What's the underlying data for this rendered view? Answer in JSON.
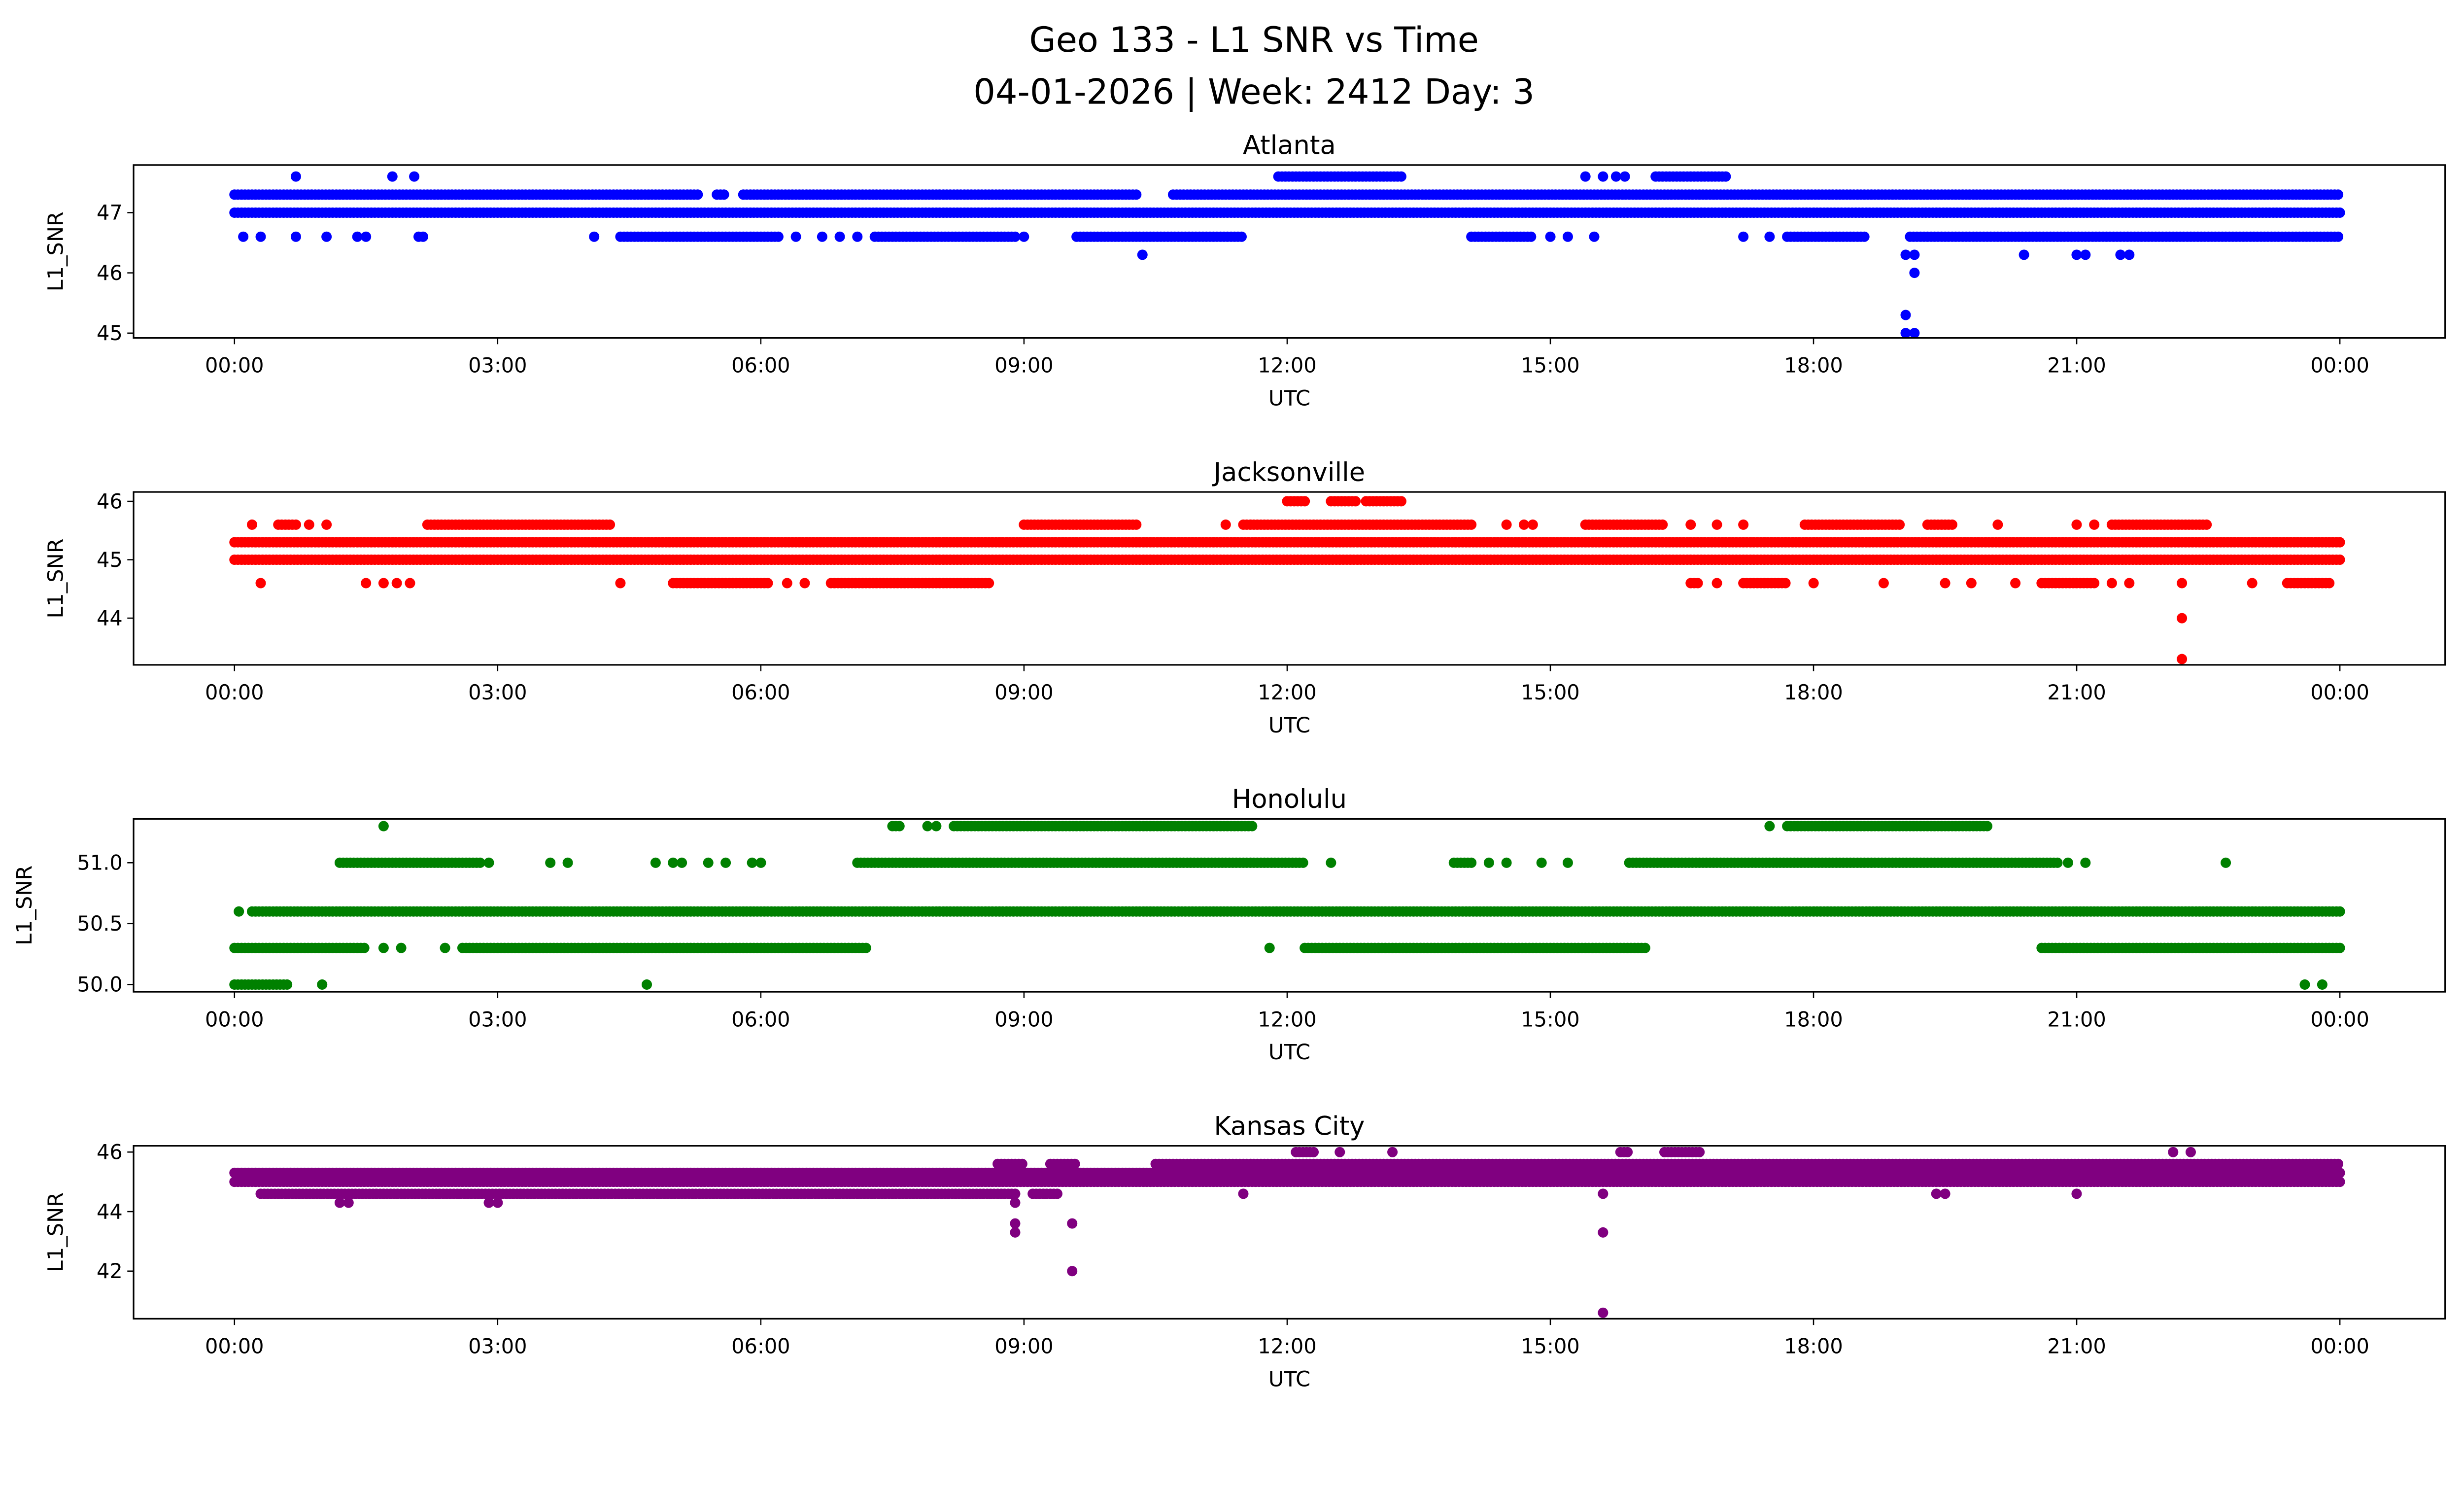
{
  "chart_data": {
    "type": "scatter",
    "title_line1": "Geo 133 - L1 SNR vs Time",
    "title_line2": "04-01-2026 | Week: 2412 Day: 3",
    "xlabel": "UTC",
    "ylabel": "L1_SNR",
    "xlim_hours": [
      -1.15,
      25.2
    ],
    "xtick_values_hours": [
      0,
      3,
      6,
      9,
      12,
      15,
      18,
      21,
      24
    ],
    "xtick_labels": [
      "00:00",
      "03:00",
      "06:00",
      "09:00",
      "12:00",
      "15:00",
      "18:00",
      "21:00",
      "00:00"
    ],
    "panels": [
      {
        "title": "Atlanta",
        "color": "#0000ff",
        "ylim": [
          44.92,
          47.79
        ],
        "yticks": [
          45,
          46,
          47
        ],
        "ytick_labels": [
          "45",
          "46",
          "47"
        ],
        "runs": [
          [
            47.0,
            0,
            24
          ],
          [
            47.3,
            0,
            5.3
          ],
          [
            47.3,
            5.5,
            5.6
          ],
          [
            47.3,
            5.8,
            10.3
          ],
          [
            47.3,
            10.7,
            24
          ],
          [
            47.6,
            11.9,
            13.3
          ],
          [
            47.6,
            16.2,
            17.0
          ],
          [
            46.6,
            4.4,
            6.2
          ],
          [
            46.6,
            7.3,
            8.9
          ],
          [
            46.6,
            9.6,
            11.5
          ],
          [
            46.6,
            14.1,
            14.8
          ],
          [
            46.6,
            17.7,
            18.6
          ],
          [
            46.6,
            19.1,
            24
          ]
        ],
        "points": [
          [
            0.7,
            47.6
          ],
          [
            1.8,
            47.6
          ],
          [
            2.05,
            47.6
          ],
          [
            15.4,
            47.6
          ],
          [
            15.6,
            47.6
          ],
          [
            15.75,
            47.6
          ],
          [
            15.85,
            47.6
          ],
          [
            0.1,
            46.6
          ],
          [
            0.3,
            46.6
          ],
          [
            0.7,
            46.6
          ],
          [
            1.05,
            46.6
          ],
          [
            1.4,
            46.6
          ],
          [
            1.5,
            46.6
          ],
          [
            2.1,
            46.6
          ],
          [
            2.15,
            46.6
          ],
          [
            4.1,
            46.6
          ],
          [
            6.4,
            46.6
          ],
          [
            6.7,
            46.6
          ],
          [
            6.9,
            46.6
          ],
          [
            7.1,
            46.6
          ],
          [
            9.0,
            46.6
          ],
          [
            15.0,
            46.6
          ],
          [
            15.2,
            46.6
          ],
          [
            15.5,
            46.6
          ],
          [
            17.2,
            46.6
          ],
          [
            17.5,
            46.6
          ],
          [
            10.35,
            46.3
          ],
          [
            19.05,
            46.3
          ],
          [
            19.15,
            46.3
          ],
          [
            20.4,
            46.3
          ],
          [
            21.0,
            46.3
          ],
          [
            21.1,
            46.3
          ],
          [
            21.5,
            46.3
          ],
          [
            21.6,
            46.3
          ],
          [
            19.15,
            46.0
          ],
          [
            19.05,
            45.3
          ],
          [
            19.05,
            45.0
          ],
          [
            19.15,
            45.0
          ]
        ]
      },
      {
        "title": "Jacksonville",
        "color": "#ff0000",
        "ylim": [
          43.2,
          46.16
        ],
        "yticks": [
          44,
          45,
          46
        ],
        "ytick_labels": [
          "44",
          "45",
          "46"
        ],
        "runs": [
          [
            45.0,
            0,
            24
          ],
          [
            45.3,
            0,
            24
          ],
          [
            45.6,
            0.5,
            0.7
          ],
          [
            45.6,
            2.2,
            4.3
          ],
          [
            45.6,
            9.0,
            10.3
          ],
          [
            45.6,
            11.5,
            14.1
          ],
          [
            45.6,
            15.4,
            16.3
          ],
          [
            45.6,
            17.9,
            19.0
          ],
          [
            45.6,
            19.3,
            19.6
          ],
          [
            45.6,
            21.4,
            22.5
          ],
          [
            46.0,
            12.0,
            12.2
          ],
          [
            46.0,
            12.5,
            12.8
          ],
          [
            46.0,
            12.9,
            13.3
          ],
          [
            44.6,
            5.0,
            6.1
          ],
          [
            44.6,
            6.8,
            8.6
          ],
          [
            44.6,
            16.6,
            16.7
          ],
          [
            44.6,
            17.2,
            17.7
          ],
          [
            44.6,
            20.6,
            21.2
          ],
          [
            44.6,
            23.4,
            23.9
          ]
        ],
        "points": [
          [
            0.2,
            45.6
          ],
          [
            0.85,
            45.6
          ],
          [
            1.05,
            45.6
          ],
          [
            11.3,
            45.6
          ],
          [
            14.5,
            45.6
          ],
          [
            14.7,
            45.6
          ],
          [
            14.8,
            45.6
          ],
          [
            16.6,
            45.6
          ],
          [
            16.9,
            45.6
          ],
          [
            17.2,
            45.6
          ],
          [
            20.1,
            45.6
          ],
          [
            21.0,
            45.6
          ],
          [
            21.2,
            45.6
          ],
          [
            0.3,
            44.6
          ],
          [
            1.5,
            44.6
          ],
          [
            1.7,
            44.6
          ],
          [
            1.85,
            44.6
          ],
          [
            2.0,
            44.6
          ],
          [
            4.4,
            44.6
          ],
          [
            6.3,
            44.6
          ],
          [
            6.5,
            44.6
          ],
          [
            16.9,
            44.6
          ],
          [
            18.0,
            44.6
          ],
          [
            18.8,
            44.6
          ],
          [
            19.5,
            44.6
          ],
          [
            19.8,
            44.6
          ],
          [
            20.3,
            44.6
          ],
          [
            21.4,
            44.6
          ],
          [
            21.6,
            44.6
          ],
          [
            22.2,
            44.6
          ],
          [
            23.0,
            44.6
          ],
          [
            22.2,
            44.0
          ],
          [
            22.2,
            43.3
          ]
        ]
      },
      {
        "title": "Honolulu",
        "color": "#008000",
        "ylim": [
          49.94,
          51.36
        ],
        "yticks": [
          50.0,
          50.5,
          51.0
        ],
        "ytick_labels": [
          "50.0",
          "50.5",
          "51.0"
        ],
        "runs": [
          [
            50.0,
            0,
            0.6
          ],
          [
            50.3,
            0,
            1.5
          ],
          [
            50.3,
            2.6,
            7.2
          ],
          [
            50.3,
            12.2,
            16.1
          ],
          [
            50.3,
            20.6,
            24
          ],
          [
            50.6,
            0.2,
            24
          ],
          [
            51.0,
            1.2,
            2.8
          ],
          [
            51.0,
            7.1,
            12.2
          ],
          [
            51.0,
            13.9,
            14.1
          ],
          [
            51.0,
            15.9,
            20.8
          ],
          [
            51.3,
            7.5,
            7.6
          ],
          [
            51.3,
            8.2,
            11.6
          ],
          [
            51.3,
            17.7,
            20.0
          ]
        ],
        "points": [
          [
            1.0,
            50.0
          ],
          [
            4.7,
            50.0
          ],
          [
            23.6,
            50.0
          ],
          [
            23.8,
            50.0
          ],
          [
            1.7,
            50.3
          ],
          [
            1.9,
            50.3
          ],
          [
            2.4,
            50.3
          ],
          [
            11.8,
            50.3
          ],
          [
            0.05,
            50.6
          ],
          [
            2.9,
            51.0
          ],
          [
            3.6,
            51.0
          ],
          [
            3.8,
            51.0
          ],
          [
            4.8,
            51.0
          ],
          [
            5.0,
            51.0
          ],
          [
            5.1,
            51.0
          ],
          [
            5.4,
            51.0
          ],
          [
            5.6,
            51.0
          ],
          [
            5.9,
            51.0
          ],
          [
            6.0,
            51.0
          ],
          [
            12.5,
            51.0
          ],
          [
            14.3,
            51.0
          ],
          [
            14.5,
            51.0
          ],
          [
            14.9,
            51.0
          ],
          [
            15.2,
            51.0
          ],
          [
            20.9,
            51.0
          ],
          [
            21.1,
            51.0
          ],
          [
            22.7,
            51.0
          ],
          [
            1.7,
            51.3
          ],
          [
            7.9,
            51.3
          ],
          [
            8.0,
            51.3
          ],
          [
            17.5,
            51.3
          ]
        ]
      },
      {
        "title": "Kansas City",
        "color": "#800080",
        "ylim": [
          40.4,
          46.21
        ],
        "yticks": [
          42,
          44,
          46
        ],
        "ytick_labels": [
          "42",
          "44",
          "46"
        ],
        "runs": [
          [
            45.0,
            0,
            24
          ],
          [
            45.3,
            0,
            24
          ],
          [
            44.6,
            0.3,
            8.9
          ],
          [
            44.6,
            9.1,
            9.4
          ],
          [
            45.6,
            8.7,
            9.0
          ],
          [
            45.6,
            9.3,
            9.6
          ],
          [
            45.6,
            10.5,
            24
          ],
          [
            46.0,
            12.1,
            12.3
          ],
          [
            46.0,
            15.8,
            15.9
          ],
          [
            46.0,
            16.3,
            16.7
          ]
        ],
        "points": [
          [
            1.2,
            44.3
          ],
          [
            1.3,
            44.3
          ],
          [
            2.9,
            44.3
          ],
          [
            3.0,
            44.3
          ],
          [
            8.9,
            44.3
          ],
          [
            11.5,
            44.6
          ],
          [
            19.4,
            44.6
          ],
          [
            19.5,
            44.6
          ],
          [
            21.0,
            44.6
          ],
          [
            12.6,
            46.0
          ],
          [
            13.2,
            46.0
          ],
          [
            22.1,
            46.0
          ],
          [
            22.3,
            46.0
          ],
          [
            8.9,
            43.6
          ],
          [
            8.9,
            43.3
          ],
          [
            9.55,
            43.6
          ],
          [
            9.55,
            42.0
          ],
          [
            15.6,
            44.6
          ],
          [
            15.6,
            43.3
          ],
          [
            15.6,
            40.6
          ]
        ]
      }
    ]
  }
}
